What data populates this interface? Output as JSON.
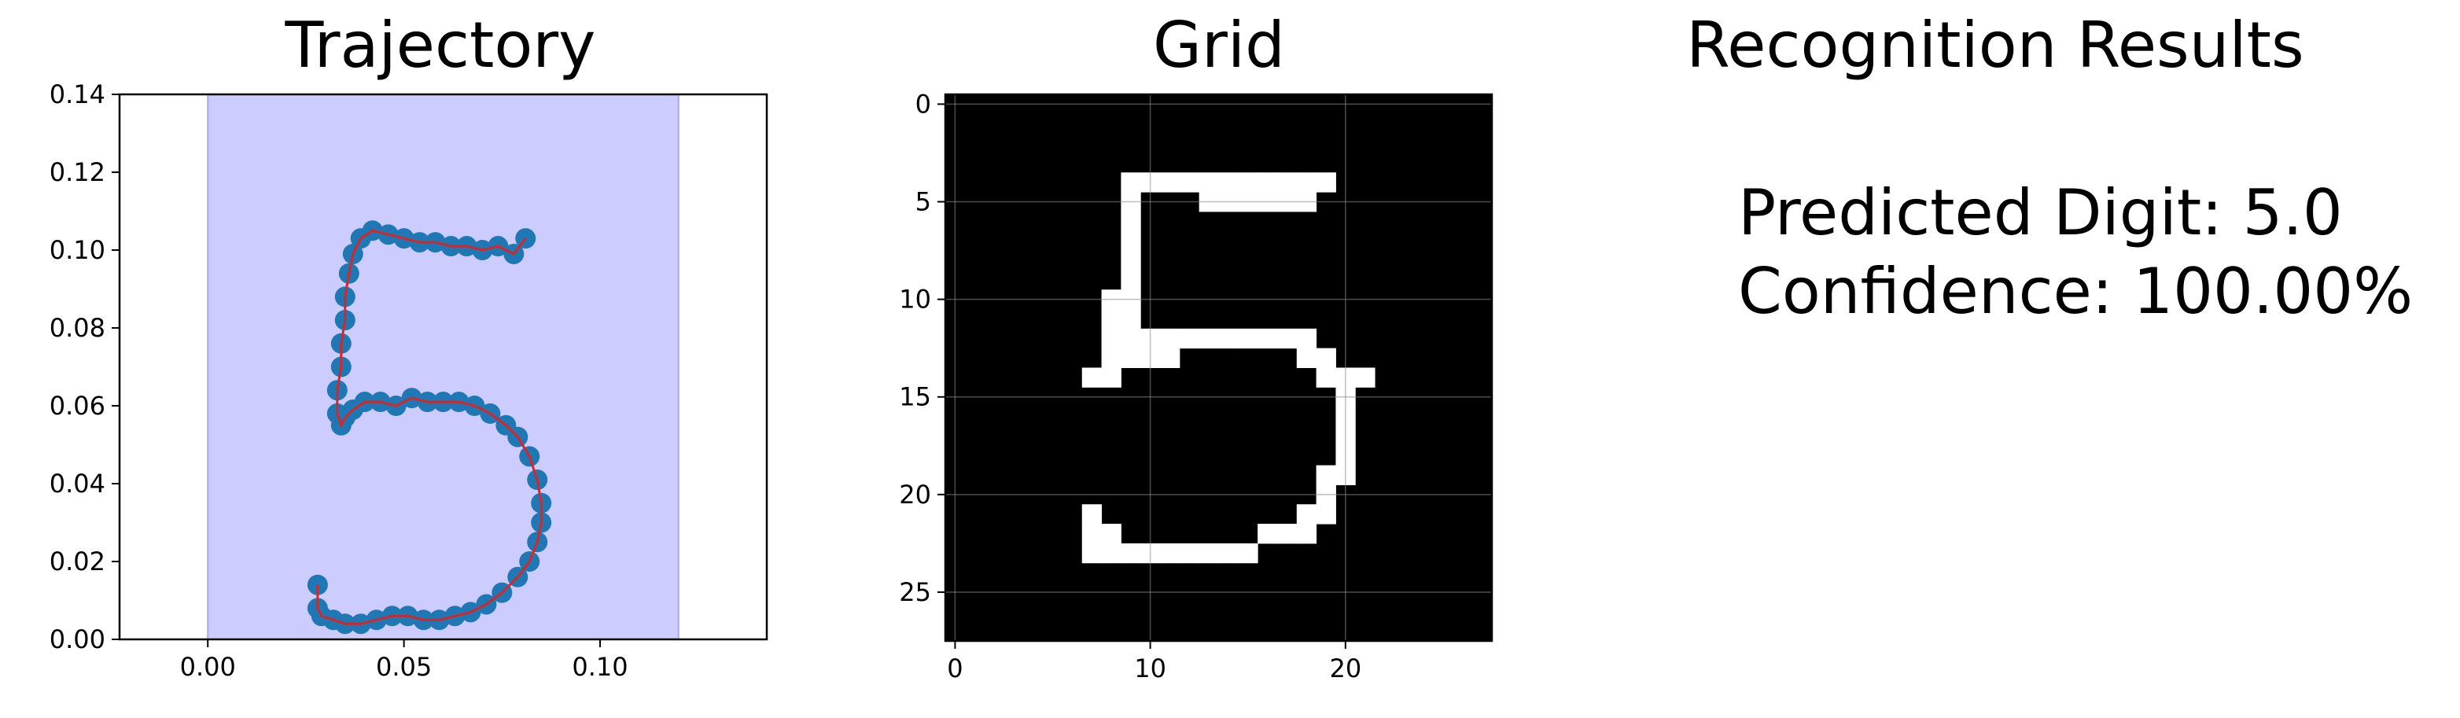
{
  "chart_data": [
    {
      "type": "line",
      "title": "Trajectory",
      "xlabel": "",
      "ylabel": "",
      "xlim": [
        -0.0225,
        0.1425
      ],
      "ylim": [
        0,
        0.14
      ],
      "xticks": [
        0.0,
        0.05,
        0.1
      ],
      "xtick_labels": [
        "0.00",
        "0.05",
        "0.10"
      ],
      "yticks": [
        0.0,
        0.02,
        0.04,
        0.06,
        0.08,
        0.1,
        0.12,
        0.14
      ],
      "ytick_labels": [
        "0.00",
        "0.02",
        "0.04",
        "0.06",
        "0.08",
        "0.10",
        "0.12",
        "0.14"
      ],
      "grid": false,
      "shaded_span": {
        "x0": 0.0,
        "x1": 0.12,
        "color": "#ccccff"
      },
      "line_color": "#d62728",
      "marker_color": "#1f77b4",
      "x": [
        0.081,
        0.078,
        0.074,
        0.07,
        0.066,
        0.062,
        0.058,
        0.054,
        0.05,
        0.046,
        0.042,
        0.039,
        0.037,
        0.036,
        0.035,
        0.035,
        0.034,
        0.034,
        0.033,
        0.033,
        0.034,
        0.035,
        0.037,
        0.04,
        0.044,
        0.048,
        0.052,
        0.056,
        0.06,
        0.064,
        0.068,
        0.072,
        0.076,
        0.079,
        0.082,
        0.084,
        0.085,
        0.085,
        0.084,
        0.082,
        0.079,
        0.075,
        0.071,
        0.067,
        0.063,
        0.059,
        0.055,
        0.051,
        0.047,
        0.043,
        0.039,
        0.035,
        0.032,
        0.029,
        0.028,
        0.028
      ],
      "y": [
        0.103,
        0.099,
        0.101,
        0.1,
        0.101,
        0.101,
        0.102,
        0.102,
        0.103,
        0.104,
        0.105,
        0.103,
        0.099,
        0.094,
        0.088,
        0.082,
        0.076,
        0.07,
        0.064,
        0.058,
        0.055,
        0.057,
        0.059,
        0.061,
        0.061,
        0.06,
        0.062,
        0.061,
        0.061,
        0.061,
        0.06,
        0.058,
        0.055,
        0.052,
        0.047,
        0.041,
        0.035,
        0.03,
        0.025,
        0.02,
        0.016,
        0.012,
        0.009,
        0.007,
        0.006,
        0.005,
        0.005,
        0.006,
        0.006,
        0.005,
        0.004,
        0.004,
        0.005,
        0.006,
        0.008,
        0.014
      ]
    },
    {
      "type": "heatmap",
      "title": "Grid",
      "xlabel": "",
      "ylabel": "",
      "size": [
        28,
        28
      ],
      "xticks": [
        0,
        10,
        20
      ],
      "xtick_labels": [
        "0",
        "10",
        "20"
      ],
      "yticks": [
        0,
        5,
        10,
        15,
        20,
        25
      ],
      "ytick_labels": [
        "0",
        "5",
        "10",
        "15",
        "20",
        "25"
      ],
      "grid": true,
      "colormap": "gray",
      "active_cells": [
        [
          4,
          9
        ],
        [
          4,
          10
        ],
        [
          4,
          11
        ],
        [
          4,
          12
        ],
        [
          4,
          13
        ],
        [
          4,
          14
        ],
        [
          4,
          15
        ],
        [
          4,
          16
        ],
        [
          4,
          17
        ],
        [
          4,
          18
        ],
        [
          4,
          19
        ],
        [
          5,
          9
        ],
        [
          5,
          13
        ],
        [
          5,
          14
        ],
        [
          5,
          15
        ],
        [
          5,
          16
        ],
        [
          5,
          17
        ],
        [
          5,
          18
        ],
        [
          6,
          9
        ],
        [
          7,
          9
        ],
        [
          8,
          9
        ],
        [
          9,
          9
        ],
        [
          10,
          8
        ],
        [
          10,
          9
        ],
        [
          11,
          8
        ],
        [
          11,
          9
        ],
        [
          12,
          8
        ],
        [
          12,
          9
        ],
        [
          12,
          10
        ],
        [
          12,
          11
        ],
        [
          12,
          12
        ],
        [
          12,
          13
        ],
        [
          12,
          14
        ],
        [
          12,
          15
        ],
        [
          12,
          16
        ],
        [
          12,
          17
        ],
        [
          12,
          18
        ],
        [
          13,
          8
        ],
        [
          13,
          9
        ],
        [
          13,
          10
        ],
        [
          13,
          11
        ],
        [
          13,
          18
        ],
        [
          13,
          19
        ],
        [
          14,
          7
        ],
        [
          14,
          8
        ],
        [
          14,
          19
        ],
        [
          14,
          20
        ],
        [
          14,
          21
        ],
        [
          15,
          20
        ],
        [
          16,
          20
        ],
        [
          17,
          20
        ],
        [
          18,
          20
        ],
        [
          19,
          19
        ],
        [
          19,
          20
        ],
        [
          20,
          19
        ],
        [
          21,
          7
        ],
        [
          21,
          18
        ],
        [
          21,
          19
        ],
        [
          22,
          7
        ],
        [
          22,
          8
        ],
        [
          22,
          16
        ],
        [
          22,
          17
        ],
        [
          22,
          18
        ],
        [
          23,
          7
        ],
        [
          23,
          8
        ],
        [
          23,
          9
        ],
        [
          23,
          10
        ],
        [
          23,
          11
        ],
        [
          23,
          12
        ],
        [
          23,
          13
        ],
        [
          23,
          14
        ],
        [
          23,
          15
        ]
      ]
    }
  ],
  "results": {
    "title": "Recognition Results",
    "line1": "Predicted Digit: 5.0",
    "line2": "Confidence: 100.00%"
  }
}
